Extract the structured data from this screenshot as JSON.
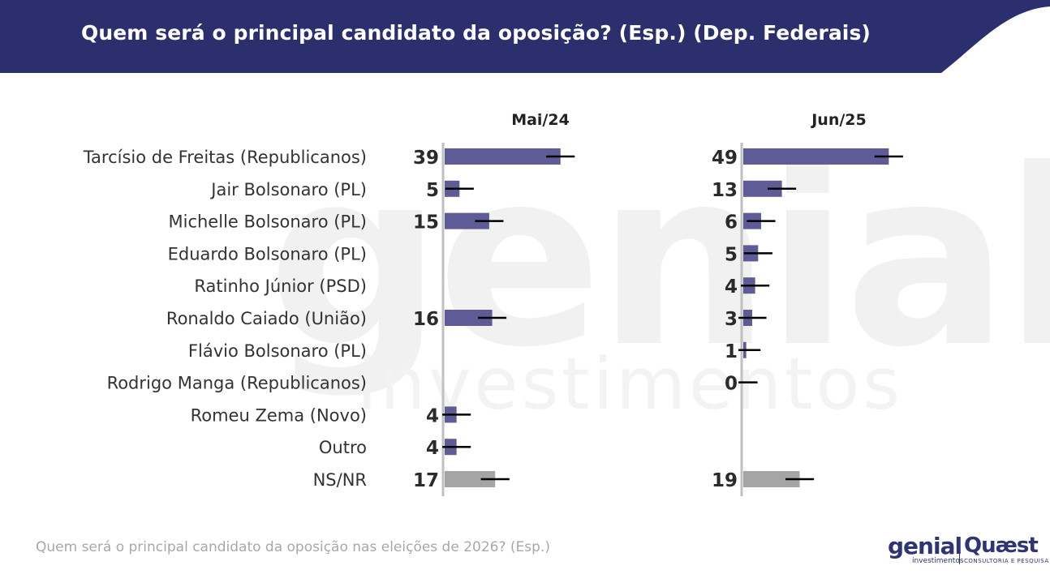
{
  "title": "Quem será o principal candidato da oposição? (Esp.) (Dep. Federais)",
  "footer": "Quem será o principal candidato da oposição nas eleições de 2026? (Esp.)",
  "watermark": {
    "line1": "genial",
    "line2": "investimentos"
  },
  "logos": {
    "genial": "genial",
    "genial_sub": "investimentos",
    "quaest": "Quæst",
    "quaest_sub": "CONSULTORIA E PESQUISA"
  },
  "colors": {
    "header": "#2b2f6e",
    "bar": "#5f5b96",
    "bar_nsnr": "#a5a5a5",
    "axis": "#c0c0c0",
    "error": "#000000",
    "label": "#333333",
    "value": "#2a2a2a"
  },
  "chart_data": {
    "type": "bar",
    "orientation": "horizontal",
    "categories": [
      "Tarcísio de Freitas (Republicanos)",
      "Jair Bolsonaro (PL)",
      "Michelle Bolsonaro (PL)",
      "Eduardo Bolsonaro (PL)",
      "Ratinho Júnior (PSD)",
      "Ronaldo Caiado (União)",
      "Flávio Bolsonaro (PL)",
      "Rodrigo Manga (Republicanos)",
      "Romeu Zema (Novo)",
      "Outro",
      "NS/NR"
    ],
    "series": [
      {
        "name": "Mai/24",
        "values": [
          39,
          5,
          15,
          null,
          null,
          16,
          null,
          null,
          4,
          4,
          17
        ]
      },
      {
        "name": "Jun/25",
        "values": [
          49,
          13,
          6,
          5,
          4,
          3,
          1,
          0,
          null,
          null,
          19
        ]
      }
    ],
    "error_margin": 8,
    "highlight_category": "NS/NR"
  }
}
